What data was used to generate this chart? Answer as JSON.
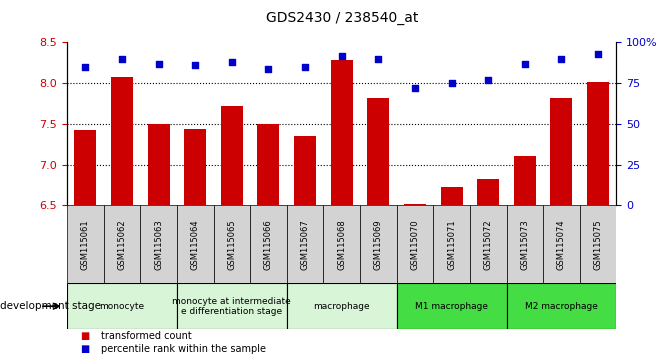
{
  "title": "GDS2430 / 238540_at",
  "samples": [
    "GSM115061",
    "GSM115062",
    "GSM115063",
    "GSM115064",
    "GSM115065",
    "GSM115066",
    "GSM115067",
    "GSM115068",
    "GSM115069",
    "GSM115070",
    "GSM115071",
    "GSM115072",
    "GSM115073",
    "GSM115074",
    "GSM115075"
  ],
  "bar_values": [
    7.43,
    8.08,
    7.5,
    7.44,
    7.72,
    7.5,
    7.35,
    8.28,
    7.82,
    6.52,
    6.73,
    6.82,
    7.1,
    7.82,
    8.02
  ],
  "dot_values": [
    85,
    90,
    87,
    86,
    88,
    84,
    85,
    92,
    90,
    72,
    75,
    77,
    87,
    90,
    93
  ],
  "bar_color": "#cc0000",
  "dot_color": "#0000cc",
  "ymin": 6.5,
  "ymax": 8.5,
  "yticks": [
    6.5,
    7.0,
    7.5,
    8.0,
    8.5
  ],
  "right_yticks": [
    0,
    25,
    50,
    75,
    100
  ],
  "right_yticklabels": [
    "0",
    "25",
    "50",
    "75",
    "100%"
  ],
  "groups": [
    {
      "label": "monocyte",
      "start": 0,
      "end": 3,
      "color": "#d8f5d8"
    },
    {
      "label": "monocyte at intermediate\ne differentiation stage",
      "start": 3,
      "end": 6,
      "color": "#d8f5d8"
    },
    {
      "label": "macrophage",
      "start": 6,
      "end": 9,
      "color": "#d8f5d8"
    },
    {
      "label": "M1 macrophage",
      "start": 9,
      "end": 12,
      "color": "#44dd44"
    },
    {
      "label": "M2 macrophage",
      "start": 12,
      "end": 15,
      "color": "#44dd44"
    }
  ],
  "sample_cell_color": "#d3d3d3",
  "dev_stage_label": "development stage",
  "legend_bar": "transformed count",
  "legend_dot": "percentile rank within the sample"
}
